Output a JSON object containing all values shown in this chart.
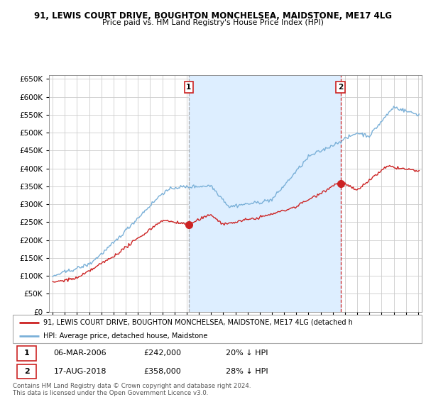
{
  "title1": "91, LEWIS COURT DRIVE, BOUGHTON MONCHELSEA, MAIDSTONE, ME17 4LG",
  "title2": "Price paid vs. HM Land Registry's House Price Index (HPI)",
  "legend_line1": "91, LEWIS COURT DRIVE, BOUGHTON MONCHELSEA, MAIDSTONE, ME17 4LG (detached h",
  "legend_line2": "HPI: Average price, detached house, Maidstone",
  "annotation1": {
    "label": "1",
    "date": "06-MAR-2006",
    "price": "£242,000",
    "pct": "20% ↓ HPI"
  },
  "annotation2": {
    "label": "2",
    "date": "17-AUG-2018",
    "price": "£358,000",
    "pct": "28% ↓ HPI"
  },
  "copyright": "Contains HM Land Registry data © Crown copyright and database right 2024.\nThis data is licensed under the Open Government Licence v3.0.",
  "hpi_color": "#7ab0d8",
  "price_color": "#cc2222",
  "marker1_x": 2006.17,
  "marker2_x": 2018.63,
  "marker1_y": 242000,
  "marker2_y": 358000,
  "ylim": [
    0,
    660000
  ],
  "xlim_start": 1994.7,
  "xlim_end": 2025.3,
  "ytick_step": 50000,
  "shade_color": "#ddeeff"
}
